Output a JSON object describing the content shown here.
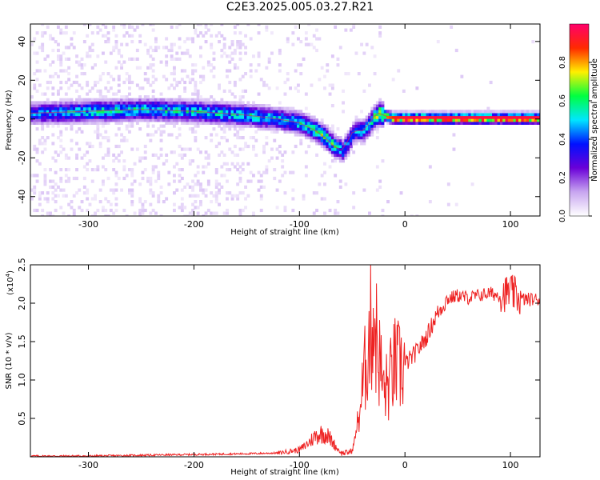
{
  "title": "C2E3.2025.005.03.27.R21",
  "chart_data": [
    {
      "type": "heatmap",
      "xlabel": "Height of straight line (km)",
      "ylabel": "Frequency (Hz)",
      "xlim": [
        -355,
        128
      ],
      "ylim": [
        -50,
        49
      ],
      "xticks": [
        -300,
        -200,
        -100,
        0,
        100
      ],
      "yticks": [
        -40,
        -20,
        0,
        20,
        40
      ],
      "grid": false,
      "colorbar": {
        "label": "Normalized spectral amplitude",
        "range": [
          0,
          1
        ],
        "ticks": [
          "0.0",
          "0.2",
          "0.4",
          "0.6",
          "0.8"
        ],
        "colormap": [
          "#ffffff",
          "#c8a6f0",
          "#6a00d8",
          "#0010ff",
          "#00e6ff",
          "#00ff40",
          "#fff000",
          "#ff2a00",
          "#ff006a"
        ]
      },
      "ridge": {
        "x": [
          -355,
          -300,
          -250,
          -200,
          -150,
          -120,
          -100,
          -85,
          -75,
          -68,
          -60,
          -55,
          -50,
          -45,
          -40,
          -35,
          -30,
          -25,
          -20,
          -15,
          -10,
          0,
          50,
          128
        ],
        "frequency": [
          3,
          4,
          5,
          4,
          2,
          0,
          -2,
          -6,
          -10,
          -14,
          -16,
          -12,
          -7,
          -6,
          -6,
          -3,
          1,
          3,
          2,
          1,
          0.5,
          0.5,
          0.5,
          0.5
        ],
        "peak_amplitude": [
          0.4,
          0.5,
          0.5,
          0.5,
          0.5,
          0.5,
          0.5,
          0.55,
          0.6,
          0.55,
          0.45,
          0.45,
          0.4,
          0.45,
          0.45,
          0.5,
          0.6,
          0.7,
          0.8,
          0.85,
          0.9,
          0.95,
          0.95,
          0.95
        ]
      }
    },
    {
      "type": "line",
      "xlabel": "Height of straight line (km)",
      "ylabel": "SNR (10 * v/v)",
      "scale_label": "(x10",
      "scale_exp": "4",
      "scale_close": ")",
      "xlim": [
        -355,
        128
      ],
      "ylim": [
        0,
        2.5
      ],
      "xticks": [
        -300,
        -200,
        -100,
        0,
        100
      ],
      "yticks": [
        0.5,
        1.0,
        1.5,
        2.0,
        2.5
      ],
      "grid": false,
      "color": "#ee2222",
      "series": [
        {
          "x": [
            -355,
            -300,
            -250,
            -200,
            -150,
            -120,
            -100,
            -95,
            -90,
            -85,
            -80,
            -75,
            -70,
            -65,
            -60,
            -55,
            -50,
            -45,
            -40,
            -35,
            -30,
            -25,
            -20,
            -15,
            -10,
            -5,
            0,
            10,
            20,
            30,
            40,
            50,
            60,
            70,
            80,
            90,
            100,
            110,
            128
          ],
          "y": [
            0.01,
            0.01,
            0.02,
            0.03,
            0.04,
            0.05,
            0.09,
            0.14,
            0.2,
            0.27,
            0.3,
            0.3,
            0.22,
            0.12,
            0.05,
            0.05,
            0.08,
            0.4,
            0.9,
            1.45,
            1.85,
            1.35,
            0.85,
            0.95,
            1.2,
            1.15,
            1.2,
            1.35,
            1.55,
            1.85,
            2.05,
            2.1,
            2.07,
            2.1,
            2.13,
            2.1,
            2.15,
            2.05,
            2.05
          ]
        }
      ]
    }
  ]
}
